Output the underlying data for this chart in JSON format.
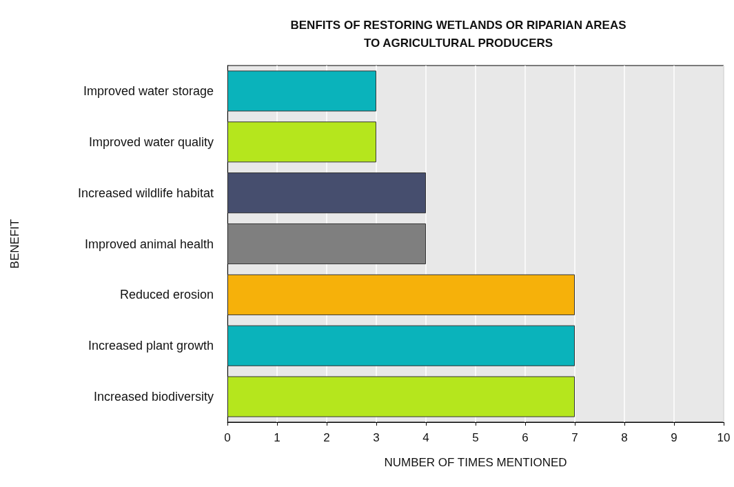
{
  "chart_data": {
    "type": "bar",
    "orientation": "horizontal",
    "title": "BENFITS OF RESTORING WETLANDS OR RIPARIAN AREAS\nTO AGRICULTURAL PRODUCERS",
    "xlabel": "NUMBER OF TIMES MENTIONED",
    "ylabel": "BENEFIT",
    "categories": [
      "Improved water storage",
      "Improved water quality",
      "Increased wildlife habitat",
      "Improved animal health",
      "Reduced erosion",
      "Increased plant growth",
      "Increased biodiversity"
    ],
    "values": [
      3,
      3,
      4,
      4,
      7,
      7,
      7
    ],
    "colors": [
      "#0ab3bb",
      "#b5e61d",
      "#464e6e",
      "#7f7f7f",
      "#f6b10a",
      "#0ab3bb",
      "#b5e61d"
    ],
    "xlim": [
      0,
      10
    ],
    "xticks": [
      0,
      1,
      2,
      3,
      4,
      5,
      6,
      7,
      8,
      9,
      10
    ],
    "grid": "x"
  }
}
